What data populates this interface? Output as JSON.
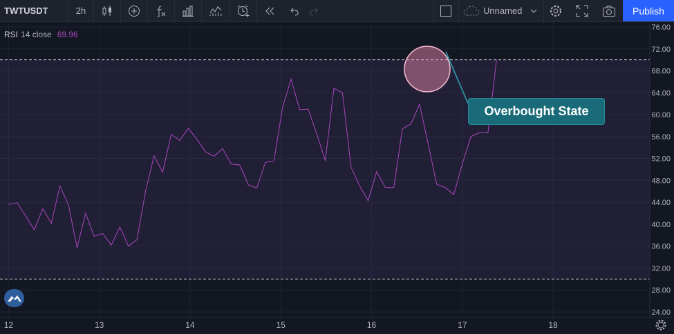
{
  "toolbar": {
    "symbol": "TWTUSDT",
    "interval": "2h",
    "layout_name": "Unnamed",
    "publish_label": "Publish",
    "icons": [
      "candles-icon",
      "plus-circle-icon",
      "fx-icon",
      "bar-compare-icon",
      "indicator-templates-icon",
      "alert-clock-icon",
      "replay-icon",
      "undo-icon",
      "redo-icon",
      "square-icon",
      "cloud-icon",
      "chevron-down-icon",
      "gear-icon",
      "fullscreen-icon",
      "camera-icon"
    ]
  },
  "legend": {
    "name": "RSI",
    "params": "14 close",
    "value": "69.96",
    "color": "#ab47bc"
  },
  "annotation": {
    "label": "Overbought State",
    "color": "#1a6b79"
  },
  "chart_data": {
    "type": "line",
    "series": [
      {
        "values": [
          43.6,
          43.9,
          41.5,
          39.0,
          42.8,
          40.2,
          47.0,
          43.5,
          35.7,
          42.0,
          37.8,
          38.3,
          36.2,
          39.5,
          36.0,
          37.2,
          46.0,
          52.5,
          49.5,
          56.4,
          55.3,
          57.5,
          55.5,
          53.2,
          52.4,
          53.8,
          51.0,
          50.8,
          47.2,
          46.6,
          51.3,
          51.5,
          61.3,
          66.5,
          60.9,
          61.0,
          56.5,
          51.6,
          64.8,
          64.0,
          50.4,
          47.0,
          44.3,
          49.6,
          46.7,
          46.7,
          57.4,
          58.3,
          61.9,
          54.8,
          47.3,
          46.7,
          45.4,
          51.0,
          56.0,
          56.7,
          56.7,
          69.96
        ]
      }
    ],
    "x_ticks": [
      "12",
      "13",
      "14",
      "15",
      "16",
      "17",
      "18"
    ],
    "x_tick_pos": [
      0.0,
      10.6,
      21.2,
      31.8,
      42.4,
      53.0,
      63.6
    ],
    "x_range": [
      -1.0,
      74.9
    ],
    "y_ticks": [
      "24.00",
      "28.00",
      "32.00",
      "36.00",
      "40.00",
      "44.00",
      "48.00",
      "52.00",
      "56.00",
      "60.00",
      "64.00",
      "68.00",
      "72.00",
      "76.00"
    ],
    "y_range": [
      24.0,
      76.0
    ],
    "bands": [
      30,
      70
    ],
    "band_fill": "#7e57c2",
    "line_color": "#ab47bc",
    "grid": true
  }
}
